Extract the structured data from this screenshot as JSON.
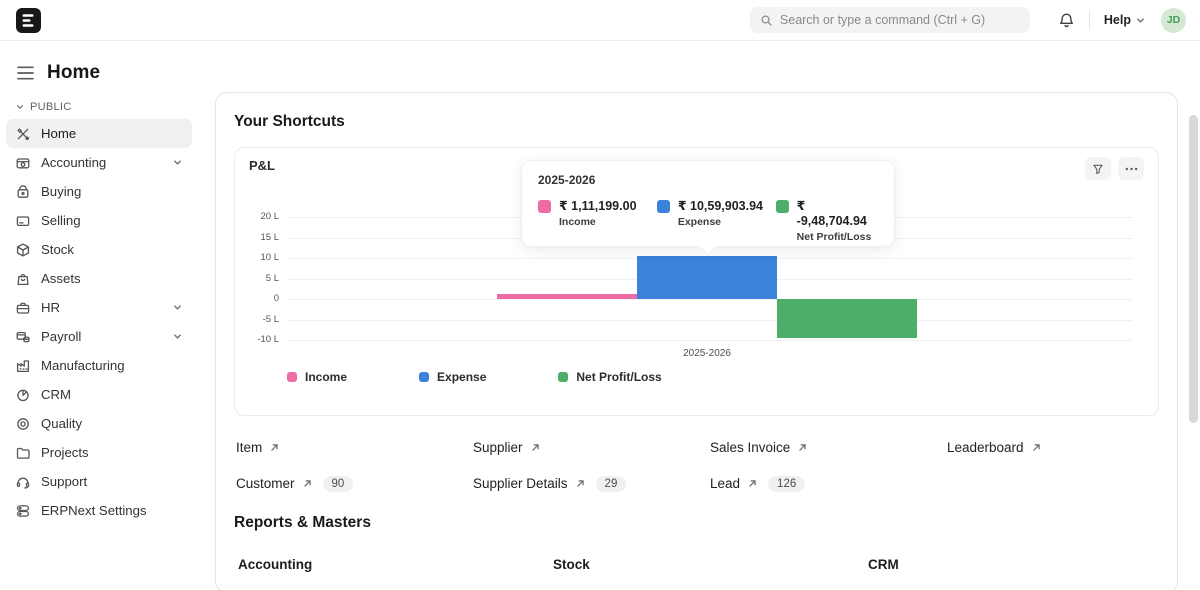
{
  "topbar": {
    "search_placeholder": "Search or type a command (Ctrl + G)",
    "help_label": "Help",
    "avatar_initials": "JD"
  },
  "header": {
    "title": "Home"
  },
  "sidebar": {
    "section_label": "PUBLIC",
    "items": [
      {
        "label": "Home",
        "icon": "tools-icon",
        "active": true,
        "expandable": false
      },
      {
        "label": "Accounting",
        "icon": "accounting-icon",
        "active": false,
        "expandable": true
      },
      {
        "label": "Buying",
        "icon": "buying-icon",
        "active": false,
        "expandable": false
      },
      {
        "label": "Selling",
        "icon": "selling-icon",
        "active": false,
        "expandable": false
      },
      {
        "label": "Stock",
        "icon": "stock-icon",
        "active": false,
        "expandable": false
      },
      {
        "label": "Assets",
        "icon": "assets-icon",
        "active": false,
        "expandable": false
      },
      {
        "label": "HR",
        "icon": "hr-icon",
        "active": false,
        "expandable": true
      },
      {
        "label": "Payroll",
        "icon": "payroll-icon",
        "active": false,
        "expandable": true
      },
      {
        "label": "Manufacturing",
        "icon": "manufacturing-icon",
        "active": false,
        "expandable": false
      },
      {
        "label": "CRM",
        "icon": "crm-icon",
        "active": false,
        "expandable": false
      },
      {
        "label": "Quality",
        "icon": "quality-icon",
        "active": false,
        "expandable": false
      },
      {
        "label": "Projects",
        "icon": "projects-icon",
        "active": false,
        "expandable": false
      },
      {
        "label": "Support",
        "icon": "support-icon",
        "active": false,
        "expandable": false
      },
      {
        "label": "ERPNext Settings",
        "icon": "settings-icon",
        "active": false,
        "expandable": false
      }
    ]
  },
  "main": {
    "shortcuts_title": "Your Shortcuts",
    "shortcut_links": [
      {
        "label": "Item",
        "count": null
      },
      {
        "label": "Supplier",
        "count": null
      },
      {
        "label": "Sales Invoice",
        "count": null
      },
      {
        "label": "Leaderboard",
        "count": null
      },
      {
        "label": "Customer",
        "count": "90"
      },
      {
        "label": "Supplier Details",
        "count": "29"
      },
      {
        "label": "Lead",
        "count": "126"
      }
    ],
    "reports_title": "Reports & Masters",
    "report_sections": [
      {
        "label": "Accounting"
      },
      {
        "label": "Stock"
      },
      {
        "label": "CRM"
      }
    ]
  },
  "chart_data": {
    "type": "bar",
    "title": "P&L",
    "categories": [
      "2025-2026"
    ],
    "series": [
      {
        "name": "Income",
        "values": [
          111199.0
        ],
        "color": "#EC6CA3"
      },
      {
        "name": "Expense",
        "values": [
          1059903.94
        ],
        "color": "#3C82DA"
      },
      {
        "name": "Net Profit/Loss",
        "values": [
          -948704.94
        ],
        "color": "#4CAE68"
      }
    ],
    "xlabel": "",
    "ylabel": "",
    "y_ticks": [
      {
        "label": "20 L",
        "value": 2000000
      },
      {
        "label": "15 L",
        "value": 1500000
      },
      {
        "label": "10 L",
        "value": 1000000
      },
      {
        "label": "5 L",
        "value": 500000
      },
      {
        "label": "0",
        "value": 0
      },
      {
        "label": "-5 L",
        "value": -500000
      },
      {
        "label": "-10 L",
        "value": -1000000
      }
    ],
    "ylim": [
      -1250000,
      2250000
    ],
    "grid": true,
    "legend_position": "bottom",
    "tooltip": {
      "title": "2025-2026",
      "entries": [
        {
          "value": "₹ 1,11,199.00",
          "label": "Income"
        },
        {
          "value": "₹ 10,59,903.94",
          "label": "Expense"
        },
        {
          "value": "₹ -9,48,704.94",
          "label": "Net Profit/Loss"
        }
      ]
    }
  },
  "icons": {
    "logo": "erpnext-e-mark",
    "search": "magnifier",
    "bell": "notification-bell",
    "chevron-down": "v-caret",
    "hamburger": "three-lines-menu",
    "funnel": "filter-funnel",
    "ellipsis": "three-dots",
    "arrow-ne": "open-link-arrow"
  }
}
